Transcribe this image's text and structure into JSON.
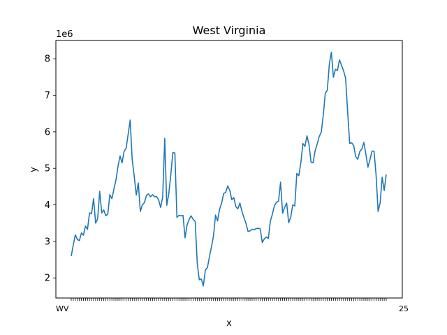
{
  "chart_data": {
    "type": "line",
    "title": "West Virginia",
    "xlabel": "x",
    "ylabel": "y",
    "y_offset_label": "1e6",
    "y_scale": 1000000,
    "ylim": [
      1450000,
      8500000
    ],
    "y_ticks": [
      2,
      3,
      4,
      5,
      6,
      7,
      8
    ],
    "grid": false,
    "series_color": "#1f77b4",
    "x_tick_labels_visible": [
      "WV",
      "25"
    ],
    "series": [
      {
        "values": [
          2600000,
          2900000,
          3180000,
          3050000,
          3020000,
          3230000,
          3170000,
          3420000,
          3330000,
          3780000,
          3760000,
          4170000,
          3500000,
          3620000,
          4370000,
          3780000,
          3860000,
          3700000,
          3750000,
          4280000,
          4170000,
          4430000,
          4680000,
          5050000,
          5340000,
          5150000,
          5460000,
          5550000,
          5930000,
          6320000,
          5240000,
          4780000,
          4270000,
          4600000,
          3820000,
          4000000,
          4060000,
          4260000,
          4300000,
          4220000,
          4280000,
          4220000,
          4230000,
          4130000,
          3930000,
          4220000,
          5820000,
          3990000,
          4300000,
          4830000,
          5430000,
          5420000,
          3660000,
          3710000,
          3700000,
          3710000,
          3100000,
          3450000,
          3600000,
          3700000,
          3600000,
          3550000,
          2400000,
          1950000,
          1970000,
          1780000,
          2220000,
          2280000,
          2580000,
          2850000,
          3150000,
          3720000,
          3560000,
          3880000,
          4050000,
          4310000,
          4340000,
          4520000,
          4400000,
          4140000,
          4200000,
          3950000,
          3890000,
          4050000,
          3820000,
          3650000,
          3490000,
          3270000,
          3290000,
          3330000,
          3320000,
          3350000,
          3360000,
          3340000,
          2970000,
          3070000,
          3120000,
          3080000,
          3560000,
          3750000,
          3980000,
          4070000,
          4100000,
          4620000,
          3770000,
          3930000,
          4050000,
          3510000,
          3660000,
          4000000,
          3970000,
          4860000,
          4800000,
          5160000,
          5680000,
          5600000,
          5890000,
          5650000,
          5170000,
          5150000,
          5480000,
          5660000,
          5870000,
          5980000,
          6440000,
          7050000,
          7140000,
          7850000,
          8180000,
          7490000,
          7710000,
          7680000,
          7970000,
          7820000,
          7670000,
          7470000,
          6560000,
          5680000,
          5700000,
          5620000,
          5320000,
          5250000,
          5460000,
          5530000,
          5710000,
          5380000,
          5030000,
          5240000,
          5470000,
          5470000,
          4820000,
          3820000,
          4050000,
          4760000,
          4390000,
          4830000
        ]
      }
    ]
  }
}
